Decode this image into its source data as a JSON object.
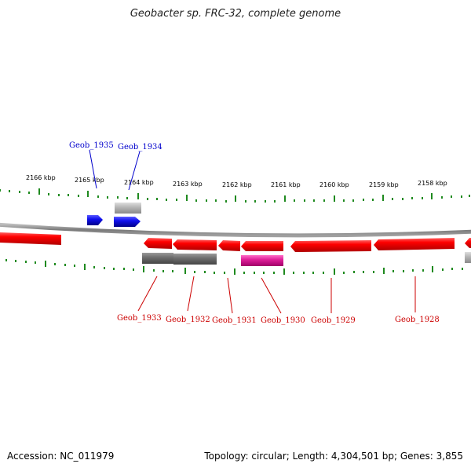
{
  "title": "Geobacter sp. FRC-32, complete genome",
  "footer": {
    "accession": "Accession: NC_011979",
    "summary": "Topology: circular; Length: 4,304,501 bp; Genes: 3,855"
  },
  "colors": {
    "forward_gene": "#1010ee",
    "reverse_gene": "#ee1010",
    "rna_gene": "#e0209a",
    "gray_feature": "#777777",
    "light_gray_feature": "#b8b8b8",
    "ticks": "#1f8a1f",
    "backbone": "#888888"
  },
  "ticks": [
    "2166 kbp",
    "2165 kbp",
    "2164 kbp",
    "2163 kbp",
    "2162 kbp",
    "2161 kbp",
    "2160 kbp",
    "2159 kbp",
    "2158 kbp"
  ],
  "forward_labels": [
    "Geob_1935",
    "Geob_1934"
  ],
  "reverse_labels": [
    "Geob_1933",
    "Geob_1932",
    "Geob_1931",
    "Geob_1930",
    "Geob_1929",
    "Geob_1928"
  ]
}
